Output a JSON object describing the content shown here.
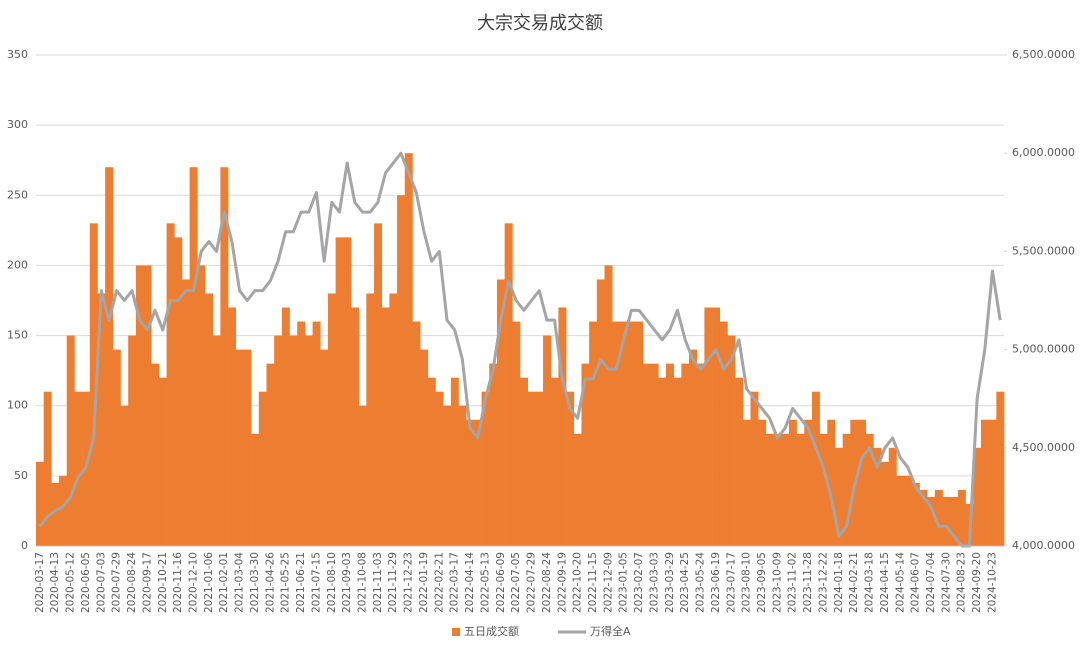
{
  "chart_data": {
    "type": "bar-line",
    "title": "大宗交易成交额",
    "categories": [
      "2020-03-17",
      null,
      "2020-04-13",
      null,
      "2020-05-12",
      null,
      "2020-06-05",
      null,
      "2020-07-03",
      null,
      "2020-07-29",
      null,
      "2020-08-24",
      null,
      "2020-09-17",
      null,
      "2020-10-21",
      null,
      "2020-11-16",
      null,
      "2020-12-10",
      null,
      "2021-01-06",
      null,
      "2021-02-01",
      null,
      "2021-03-04",
      null,
      "2021-03-30",
      null,
      "2021-04-26",
      null,
      "2021-05-25",
      null,
      "2021-06-21",
      null,
      "2021-07-15",
      null,
      "2021-08-10",
      null,
      "2021-09-03",
      null,
      "2021-10-08",
      null,
      "2021-11-03",
      null,
      "2021-11-29",
      null,
      "2021-12-23",
      null,
      "2022-01-19",
      null,
      "2022-02-21",
      null,
      "2022-03-17",
      null,
      "2022-04-14",
      null,
      "2022-05-13",
      null,
      "2022-06-09",
      null,
      "2022-07-05",
      null,
      "2022-07-29",
      null,
      "2022-08-24",
      null,
      "2022-09-19",
      null,
      "2022-10-20",
      null,
      "2022-11-15",
      null,
      "2022-12-09",
      null,
      "2023-01-05",
      null,
      "2023-02-07",
      null,
      "2023-03-03",
      null,
      "2023-03-29",
      null,
      "2023-04-25",
      null,
      "2023-05-24",
      null,
      "2023-06-19",
      null,
      "2023-07-17",
      null,
      "2023-08-10",
      null,
      "2023-09-05",
      null,
      "2023-10-09",
      null,
      "2023-11-02",
      null,
      "2023-11-28",
      null,
      "2023-12-22",
      null,
      "2024-01-18",
      null,
      "2024-02-21",
      null,
      "2024-03-18",
      null,
      "2024-04-15",
      null,
      "2024-05-14",
      null,
      "2024-06-07",
      null,
      "2024-07-04",
      null,
      "2024-07-30",
      null,
      "2024-08-23",
      null,
      "2024-09-20",
      null,
      "2024-10-23",
      null
    ],
    "series": [
      {
        "name": "五日成交额",
        "color": "#ED7D31",
        "kind": "bar",
        "values": [
          60,
          110,
          45,
          50,
          150,
          110,
          110,
          230,
          180,
          270,
          140,
          100,
          150,
          200,
          200,
          130,
          120,
          230,
          220,
          190,
          270,
          200,
          180,
          150,
          270,
          170,
          140,
          140,
          80,
          110,
          130,
          150,
          170,
          150,
          160,
          150,
          160,
          140,
          180,
          220,
          220,
          170,
          100,
          180,
          230,
          170,
          180,
          250,
          280,
          160,
          140,
          120,
          110,
          100,
          120,
          100,
          90,
          90,
          110,
          130,
          190,
          230,
          160,
          120,
          110,
          110,
          150,
          120,
          170,
          110,
          80,
          130,
          160,
          190,
          200,
          160,
          160,
          160,
          160,
          130,
          130,
          120,
          130,
          120,
          130,
          140,
          130,
          170,
          170,
          160,
          150,
          120,
          90,
          110,
          90,
          80,
          80,
          80,
          90,
          80,
          90,
          110,
          80,
          90,
          70,
          80,
          90,
          90,
          80,
          70,
          60,
          70,
          50,
          50,
          45,
          40,
          35,
          40,
          35,
          35,
          40,
          30,
          70,
          90,
          90,
          110
        ]
      },
      {
        "name": "万得全A",
        "color": "#A5A5A5",
        "kind": "line",
        "axis": "y2",
        "values": [
          4100,
          4150,
          4180,
          4200,
          4250,
          4350,
          4400,
          4550,
          5300,
          5150,
          5300,
          5250,
          5300,
          5150,
          5100,
          5200,
          5100,
          5250,
          5250,
          5300,
          5300,
          5500,
          5550,
          5500,
          5700,
          5550,
          5300,
          5250,
          5300,
          5300,
          5350,
          5450,
          5600,
          5600,
          5700,
          5700,
          5800,
          5450,
          5750,
          5700,
          5950,
          5750,
          5700,
          5700,
          5750,
          5900,
          5950,
          6000,
          5900,
          5800,
          5600,
          5450,
          5500,
          5150,
          5100,
          4950,
          4600,
          4550,
          4750,
          4900,
          5150,
          5350,
          5250,
          5200,
          5250,
          5300,
          5150,
          5150,
          4850,
          4700,
          4650,
          4850,
          4850,
          4950,
          4900,
          4900,
          5050,
          5200,
          5200,
          5150,
          5100,
          5050,
          5100,
          5200,
          5050,
          4950,
          4900,
          4950,
          5000,
          4900,
          4950,
          5050,
          4800,
          4750,
          4700,
          4650,
          4550,
          4600,
          4700,
          4650,
          4600,
          4500,
          4400,
          4250,
          4050,
          4100,
          4300,
          4450,
          4500,
          4400,
          4500,
          4550,
          4450,
          4400,
          4300,
          4250,
          4200,
          4100,
          4100,
          4050,
          4000,
          4000,
          4750,
          5000,
          5400,
          5150
        ]
      }
    ],
    "ylim": [
      0,
      350
    ],
    "yticks": [
      0,
      50,
      100,
      150,
      200,
      250,
      300,
      350
    ],
    "y2lim": [
      4000,
      6500
    ],
    "y2ticks": [
      {
        "value": 4000,
        "label": "4,000.0000"
      },
      {
        "value": 4500,
        "label": "4,500.0000"
      },
      {
        "value": 5000,
        "label": "5,000.0000"
      },
      {
        "value": 5500,
        "label": "5,500.0000"
      },
      {
        "value": 6000,
        "label": "6,000.0000"
      },
      {
        "value": 6500,
        "label": "6,500.0000"
      }
    ],
    "grid": true,
    "legend": "bottom"
  }
}
